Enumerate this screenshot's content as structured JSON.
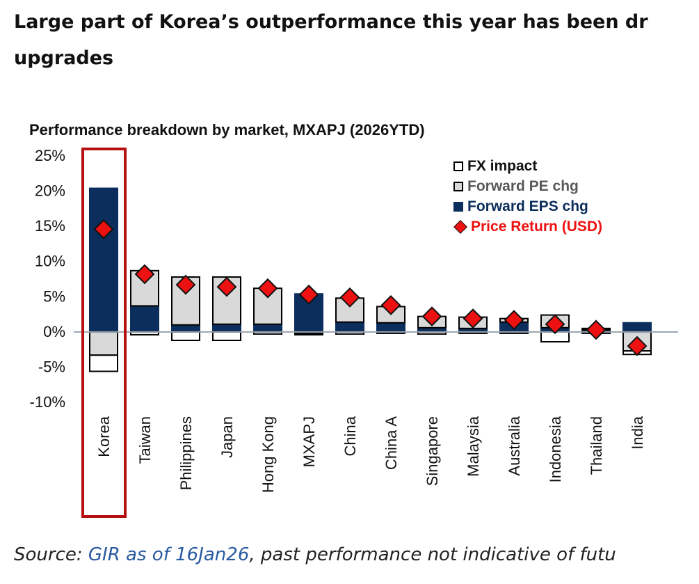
{
  "headline": {
    "line1": "Large part of Korea’s outperformance this year has been dr",
    "line2": "upgrades"
  },
  "source": {
    "prefix": "Source: ",
    "link_text": "GIR as of 16Jan26",
    "suffix": ", past performance not indicative of futu"
  },
  "chart_data": {
    "type": "bar",
    "subtype": "stacked-bar-with-markers",
    "title": "Performance breakdown by market, MXAPJ (2026YTD)",
    "xlabel": "",
    "ylabel": "",
    "ylim": [
      -10,
      25
    ],
    "yticks": [
      25,
      20,
      15,
      10,
      5,
      0,
      -5,
      -10
    ],
    "ytick_labels": [
      "25%",
      "20%",
      "15%",
      "10%",
      "5%",
      "0%",
      "-5%",
      "-10%"
    ],
    "grid": false,
    "legend_position": "top-right",
    "highlighted_category": "Korea",
    "categories": [
      "Korea",
      "Taiwan",
      "Philippines",
      "Japan",
      "Hong Kong",
      "MXAPJ",
      "China",
      "China A",
      "Singapore",
      "Malaysia",
      "Australia",
      "Indonesia",
      "Thailand",
      "India"
    ],
    "series": [
      {
        "name": "Forward EPS chg",
        "color": "#0b2e5c",
        "border": "#0b2e5c",
        "values": [
          20.4,
          3.7,
          1.0,
          1.1,
          1.1,
          5.4,
          1.4,
          1.3,
          0.6,
          0.5,
          1.4,
          0.6,
          0.3,
          1.3
        ]
      },
      {
        "name": "Forward PE chg",
        "color": "#d9d9d9",
        "border": "#000000",
        "values": [
          -3.3,
          5.0,
          6.8,
          6.7,
          5.1,
          -0.2,
          3.4,
          2.3,
          1.6,
          1.6,
          0.5,
          1.8,
          0.2,
          -2.7
        ]
      },
      {
        "name": "FX impact",
        "color": "#ffffff",
        "border": "#000000",
        "values": [
          -2.3,
          -0.4,
          -1.2,
          -1.2,
          -0.3,
          -0.2,
          -0.3,
          -0.2,
          -0.3,
          -0.2,
          -0.2,
          -1.4,
          -0.2,
          -0.5
        ]
      }
    ],
    "markers": {
      "name": "Price Return (USD)",
      "color": "#ee1111",
      "values": [
        14.6,
        8.2,
        6.7,
        6.4,
        6.2,
        5.3,
        4.9,
        3.8,
        2.2,
        1.9,
        1.7,
        1.1,
        0.3,
        -2.0
      ]
    },
    "legend": [
      {
        "label": "FX impact",
        "fill": "#ffffff",
        "text_color": "#111111",
        "symbol": "box"
      },
      {
        "label": "Forward PE chg",
        "fill": "#d9d9d9",
        "text_color": "#595959",
        "symbol": "box"
      },
      {
        "label": "Forward EPS chg",
        "fill": "#0b2e5c",
        "text_color": "#0b2e5c",
        "symbol": "box"
      },
      {
        "label": "Price Return (USD)",
        "fill": "#ee1111",
        "text_color": "#ee1111",
        "symbol": "diamond"
      }
    ]
  }
}
